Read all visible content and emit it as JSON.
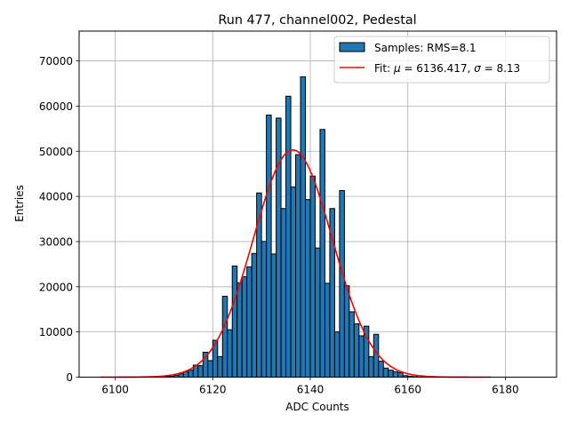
{
  "chart_data": {
    "type": "bar",
    "title": "Run 477, channel002, Pedestal",
    "xlabel": "ADC Counts",
    "ylabel": "Entries",
    "xlim": [
      6092.6,
      6190.5
    ],
    "ylim": [
      0,
      76600
    ],
    "grid": true,
    "legend_placement": "top-right",
    "x_ticks": [
      "6100",
      "6120",
      "6140",
      "6160",
      "6180"
    ],
    "x_tick_values": [
      6100,
      6120,
      6140,
      6160,
      6180
    ],
    "y_ticks": [
      "0",
      "10000",
      "20000",
      "30000",
      "40000",
      "50000",
      "60000",
      "70000"
    ],
    "y_tick_values": [
      0,
      10000,
      20000,
      30000,
      40000,
      50000,
      60000,
      70000
    ],
    "histogram": {
      "name": "Samples: RMS=8.1",
      "color": "#1f77b4",
      "edge_color": "#000000",
      "bin_width": 1,
      "bin_starts": [
        6110,
        6111,
        6112,
        6113,
        6114,
        6115,
        6116,
        6117,
        6118,
        6119,
        6120,
        6121,
        6122,
        6123,
        6124,
        6125,
        6126,
        6127,
        6128,
        6129,
        6130,
        6131,
        6132,
        6133,
        6134,
        6135,
        6136,
        6137,
        6138,
        6139,
        6140,
        6141,
        6142,
        6143,
        6144,
        6145,
        6146,
        6147,
        6148,
        6149,
        6150,
        6151,
        6152,
        6153,
        6154,
        6155,
        6156,
        6157,
        6158,
        6159,
        6160,
        6161
      ],
      "values": [
        100,
        200,
        400,
        750,
        1200,
        1540,
        2660,
        2540,
        5510,
        3660,
        8170,
        4530,
        17910,
        10490,
        24610,
        20890,
        22220,
        24410,
        27380,
        40770,
        30040,
        58010,
        27260,
        57340,
        37320,
        62180,
        42100,
        49250,
        66490,
        39310,
        44490,
        28580,
        54820,
        20770,
        37320,
        10020,
        41300,
        20220,
        14470,
        11810,
        9150,
        11280,
        4530,
        9490,
        3520,
        2000,
        1540,
        1200,
        1000,
        340,
        200,
        100
      ]
    },
    "fit": {
      "name_prefix": "Fit: ",
      "mu_symbol": "μ",
      "mu_text": " = 6136.417, ",
      "sigma_symbol": "σ",
      "sigma_text": " = 8.13",
      "color": "#ff0000",
      "mu": 6136.417,
      "sigma": 8.13,
      "amplitude": 50300,
      "x_range": [
        6097,
        6177
      ]
    }
  }
}
